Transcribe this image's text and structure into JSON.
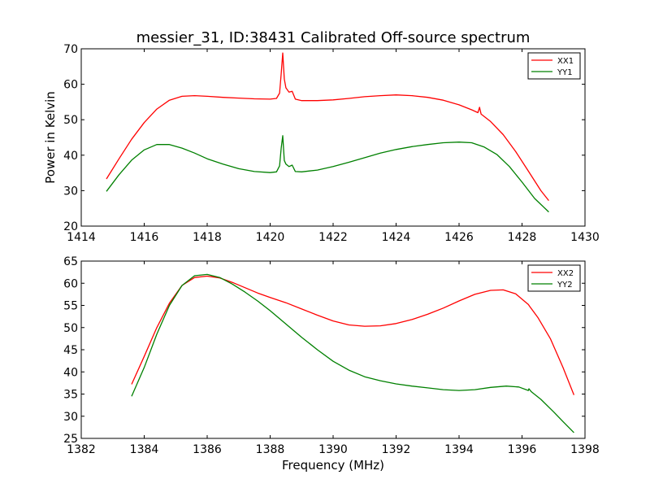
{
  "page": {
    "title": "messier_31, ID:38431 Calibrated Off-source spectrum"
  },
  "chart_data": [
    {
      "type": "line",
      "title": "messier_31, ID:38431 Calibrated Off-source spectrum",
      "xlabel": "",
      "ylabel": "Power in Kelvin",
      "xlim": [
        1414,
        1430
      ],
      "ylim": [
        20,
        70
      ],
      "xticks": [
        "1414",
        "1416",
        "1418",
        "1420",
        "1422",
        "1424",
        "1426",
        "1428",
        "1430"
      ],
      "yticks": [
        "20",
        "30",
        "40",
        "50",
        "60",
        "70"
      ],
      "grid": false,
      "legend_position": "top-right",
      "series": [
        {
          "name": "XX1",
          "color": "#ff0000",
          "x": [
            1414.8,
            1415.2,
            1415.6,
            1416.0,
            1416.4,
            1416.8,
            1417.2,
            1417.6,
            1418.0,
            1418.5,
            1419.0,
            1419.5,
            1420.0,
            1420.2,
            1420.3,
            1420.35,
            1420.4,
            1420.45,
            1420.5,
            1420.6,
            1420.7,
            1420.8,
            1421.0,
            1421.5,
            1422.0,
            1422.5,
            1423.0,
            1423.5,
            1424.0,
            1424.5,
            1425.0,
            1425.5,
            1426.0,
            1426.4,
            1426.6,
            1426.65,
            1426.7,
            1427.0,
            1427.4,
            1427.8,
            1428.2,
            1428.6,
            1428.85
          ],
          "y": [
            33.3,
            39.0,
            44.5,
            49.2,
            53.0,
            55.5,
            56.6,
            56.8,
            56.6,
            56.3,
            56.1,
            55.9,
            55.8,
            56.0,
            57.5,
            63.0,
            68.8,
            61.5,
            59.0,
            57.8,
            58.0,
            55.8,
            55.4,
            55.4,
            55.6,
            56.0,
            56.5,
            56.8,
            57.0,
            56.8,
            56.3,
            55.5,
            54.2,
            52.8,
            52.0,
            53.5,
            51.6,
            49.5,
            45.8,
            41.0,
            35.5,
            30.0,
            27.2
          ]
        },
        {
          "name": "YY1",
          "color": "#008000",
          "x": [
            1414.8,
            1415.2,
            1415.6,
            1416.0,
            1416.4,
            1416.8,
            1417.2,
            1417.6,
            1418.0,
            1418.5,
            1419.0,
            1419.5,
            1420.0,
            1420.2,
            1420.3,
            1420.35,
            1420.4,
            1420.45,
            1420.5,
            1420.6,
            1420.7,
            1420.8,
            1421.0,
            1421.5,
            1422.0,
            1422.5,
            1423.0,
            1423.5,
            1424.0,
            1424.5,
            1425.0,
            1425.5,
            1426.0,
            1426.4,
            1426.8,
            1427.2,
            1427.6,
            1428.0,
            1428.4,
            1428.85
          ],
          "y": [
            29.8,
            34.5,
            38.6,
            41.5,
            43.0,
            43.0,
            42.0,
            40.6,
            39.0,
            37.5,
            36.2,
            35.4,
            35.1,
            35.3,
            37.0,
            42.0,
            45.5,
            38.5,
            37.5,
            36.8,
            37.2,
            35.4,
            35.3,
            35.8,
            36.8,
            38.0,
            39.3,
            40.6,
            41.6,
            42.4,
            43.0,
            43.5,
            43.7,
            43.5,
            42.3,
            40.2,
            36.8,
            32.4,
            27.8,
            24.0
          ]
        }
      ]
    },
    {
      "type": "line",
      "title": "",
      "xlabel": "Frequency (MHz)",
      "ylabel": "",
      "xlim": [
        1382,
        1398
      ],
      "ylim": [
        25,
        65
      ],
      "xticks": [
        "1382",
        "1384",
        "1386",
        "1388",
        "1390",
        "1392",
        "1394",
        "1396",
        "1398"
      ],
      "yticks": [
        "25",
        "30",
        "35",
        "40",
        "45",
        "50",
        "55",
        "60",
        "65"
      ],
      "grid": false,
      "legend_position": "top-right",
      "series": [
        {
          "name": "XX2",
          "color": "#ff0000",
          "x": [
            1383.6,
            1384.0,
            1384.4,
            1384.8,
            1385.2,
            1385.6,
            1386.0,
            1386.4,
            1386.8,
            1387.2,
            1387.6,
            1388.0,
            1388.5,
            1389.0,
            1389.5,
            1390.0,
            1390.5,
            1391.0,
            1391.5,
            1392.0,
            1392.5,
            1393.0,
            1393.5,
            1394.0,
            1394.5,
            1395.0,
            1395.4,
            1395.8,
            1396.1,
            1396.2,
            1396.25,
            1396.5,
            1396.9,
            1397.3,
            1397.65
          ],
          "y": [
            37.2,
            43.5,
            50.0,
            55.5,
            59.5,
            61.3,
            61.6,
            61.2,
            60.2,
            59.0,
            57.8,
            56.8,
            55.6,
            54.2,
            52.8,
            51.5,
            50.6,
            50.3,
            50.4,
            50.9,
            51.8,
            53.0,
            54.4,
            56.0,
            57.5,
            58.4,
            58.5,
            57.6,
            55.8,
            55.2,
            54.7,
            52.3,
            47.5,
            41.0,
            34.8
          ]
        },
        {
          "name": "YY2",
          "color": "#008000",
          "x": [
            1383.6,
            1384.0,
            1384.4,
            1384.8,
            1385.2,
            1385.6,
            1386.0,
            1386.4,
            1386.8,
            1387.2,
            1387.6,
            1388.0,
            1388.5,
            1389.0,
            1389.5,
            1390.0,
            1390.5,
            1391.0,
            1391.5,
            1392.0,
            1392.5,
            1393.0,
            1393.5,
            1394.0,
            1394.5,
            1395.0,
            1395.5,
            1395.9,
            1396.2,
            1396.22,
            1396.3,
            1396.6,
            1397.0,
            1397.3,
            1397.65
          ],
          "y": [
            34.5,
            41.0,
            48.5,
            55.0,
            59.5,
            61.7,
            62.0,
            61.3,
            59.8,
            58.0,
            56.0,
            53.8,
            50.8,
            47.8,
            45.0,
            42.4,
            40.4,
            38.9,
            38.0,
            37.3,
            36.8,
            36.4,
            36.0,
            35.8,
            36.0,
            36.5,
            36.8,
            36.6,
            35.8,
            36.2,
            35.5,
            33.8,
            31.0,
            28.8,
            26.3
          ]
        }
      ]
    }
  ]
}
